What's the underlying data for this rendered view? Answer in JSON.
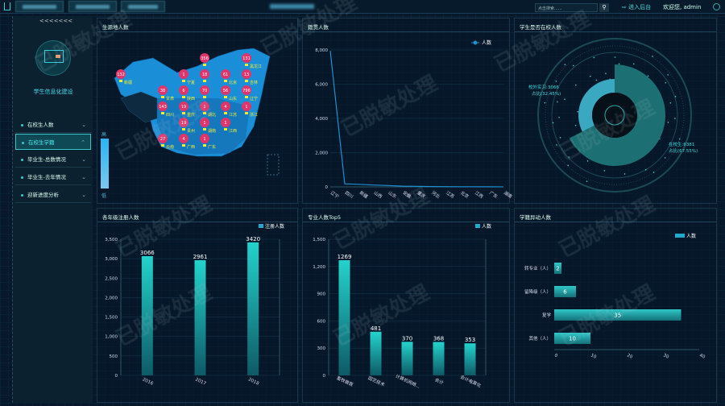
{
  "header": {
    "search_placeholder": "点击搜索......",
    "admin_link": "进入后台",
    "welcome": "欢迎您, admin"
  },
  "sidebar": {
    "collapse": "<<<<<<<",
    "logo_title": "学生信息化建设",
    "items": [
      {
        "label": "在校生人数",
        "active": false
      },
      {
        "label": "在校生学籍",
        "active": true
      },
      {
        "label": "毕业生-总数情况",
        "active": false
      },
      {
        "label": "毕业生-去年情况",
        "active": false
      },
      {
        "label": "迎新进度分析",
        "active": false
      }
    ]
  },
  "watermark": "已脱敏处理",
  "colors": {
    "accent": "#2ad0cc",
    "map": "#1a8fd8",
    "pin": "#e0356a",
    "line": "#1e8fd0"
  },
  "map_panel": {
    "title": "生源地人数",
    "legend_high": "高",
    "legend_low": "低",
    "pins": [
      {
        "v": "132",
        "p": "新疆"
      },
      {
        "v": "131",
        "p": "黑龙江"
      },
      {
        "v": "13",
        "p": "吉林"
      },
      {
        "v": "796",
        "p": "辽宁"
      },
      {
        "v": "356",
        "p": ""
      },
      {
        "v": "1",
        "p": "宁夏"
      },
      {
        "v": "38",
        "p": "甘肃"
      },
      {
        "v": "6",
        "p": "陕西"
      },
      {
        "v": "61",
        "p": "北京"
      },
      {
        "v": "18",
        "p": ""
      },
      {
        "v": "56",
        "p": "山东"
      },
      {
        "v": "70",
        "p": ""
      },
      {
        "v": "143",
        "p": "四川"
      },
      {
        "v": "19",
        "p": "重庆"
      },
      {
        "v": "19",
        "p": "贵州"
      },
      {
        "v": "27",
        "p": "云南"
      },
      {
        "v": "4",
        "p": "广西"
      },
      {
        "v": "1",
        "p": "广东"
      },
      {
        "v": "1",
        "p": "湖北"
      },
      {
        "v": "1",
        "p": "湖南"
      },
      {
        "v": "1",
        "p": "江西"
      },
      {
        "v": "4",
        "p": "江苏"
      },
      {
        "v": "1",
        "p": "浙江"
      }
    ]
  },
  "chart_data": [
    {
      "type": "line",
      "title": "籍贯人数",
      "legend": [
        "人数"
      ],
      "legend_position": "top-right",
      "categories": [
        "辽宁",
        "四川",
        "新疆",
        "山西",
        "山东",
        "安徽",
        "重庆",
        "河北",
        "江苏",
        "北京",
        "江西",
        "广东",
        "湖南"
      ],
      "series": [
        {
          "name": "人数",
          "values": [
            7950,
            180,
            150,
            110,
            80,
            40,
            30,
            20,
            15,
            10,
            8,
            5,
            3
          ]
        }
      ],
      "ylim": [
        0,
        8000
      ],
      "yticks": [
        "0",
        "2,000",
        "4,000",
        "6,000",
        "8,000"
      ],
      "grid": true
    },
    {
      "type": "pie",
      "title": "学生是否在校人数",
      "slices": [
        {
          "name": "在校生",
          "value": 6381,
          "label": "在校生:6381",
          "pct": "占比(67.55%)"
        },
        {
          "name": "校外实习",
          "value": 3066,
          "label": "校外实习:3066",
          "pct": "占比(32.45%)"
        }
      ]
    },
    {
      "type": "bar",
      "title": "各年级注册人数",
      "legend": [
        "注册人数"
      ],
      "legend_position": "top-right",
      "categories": [
        "2016",
        "2017",
        "2018"
      ],
      "values": [
        3066,
        2961,
        3420
      ],
      "ylim": [
        0,
        3500
      ],
      "yticks": [
        "0",
        "500",
        "1,000",
        "1,500",
        "2,000",
        "2,500",
        "3,000",
        "3,500"
      ],
      "grid": true
    },
    {
      "type": "bar",
      "title": "专业人数Top5",
      "legend": [
        "人数"
      ],
      "legend_position": "top-right",
      "categories": [
        "畜牧兽医",
        "园艺技术",
        "计算机网络...",
        "会计",
        "会计电算化"
      ],
      "values": [
        1269,
        481,
        370,
        368,
        353
      ],
      "ylim": [
        0,
        1500
      ],
      "yticks": [
        "0",
        "300",
        "600",
        "900",
        "1,200",
        "1,500"
      ],
      "grid": true
    },
    {
      "type": "bar",
      "orientation": "horizontal",
      "title": "学籍异动人数",
      "legend": [
        "人数"
      ],
      "legend_position": "top-right",
      "categories": [
        "转专业（人）",
        "留降级（人）",
        "复学",
        "其他（人）"
      ],
      "values": [
        2,
        6,
        35,
        10
      ],
      "xlim": [
        0,
        40
      ],
      "xticks": [
        "0",
        "10",
        "20",
        "30",
        "40"
      ],
      "grid": true
    }
  ]
}
